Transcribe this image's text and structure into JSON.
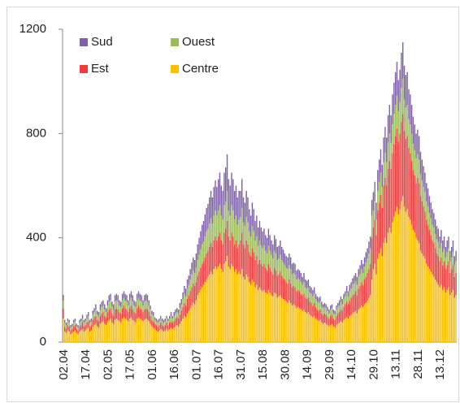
{
  "chart_data": {
    "type": "stacked_bar",
    "categories": [
      "02.04",
      null,
      null,
      null,
      null,
      null,
      null,
      null,
      null,
      null,
      null,
      null,
      null,
      null,
      null,
      "17.04",
      null,
      null,
      null,
      null,
      null,
      null,
      null,
      null,
      null,
      null,
      null,
      null,
      null,
      null,
      "02.05",
      null,
      null,
      null,
      null,
      null,
      null,
      null,
      null,
      null,
      null,
      null,
      null,
      null,
      null,
      "17.05",
      null,
      null,
      null,
      null,
      null,
      null,
      null,
      null,
      null,
      null,
      null,
      null,
      null,
      null,
      "01.06",
      null,
      null,
      null,
      null,
      null,
      null,
      null,
      null,
      null,
      null,
      null,
      null,
      null,
      null,
      "16.06",
      null,
      null,
      null,
      null,
      null,
      null,
      null,
      null,
      null,
      null,
      null,
      null,
      null,
      null,
      "01.07",
      null,
      null,
      null,
      null,
      null,
      null,
      null,
      null,
      null,
      null,
      null,
      null,
      null,
      null,
      "16.07",
      null,
      null,
      null,
      null,
      null,
      null,
      null,
      null,
      null,
      null,
      null,
      null,
      null,
      null,
      "31.07",
      null,
      null,
      null,
      null,
      null,
      null,
      null,
      null,
      null,
      null,
      null,
      null,
      null,
      null,
      "15.08",
      null,
      null,
      null,
      null,
      null,
      null,
      null,
      null,
      null,
      null,
      null,
      null,
      null,
      null,
      "30.08",
      null,
      null,
      null,
      null,
      null,
      null,
      null,
      null,
      null,
      null,
      null,
      null,
      null,
      null,
      "14.09",
      null,
      null,
      null,
      null,
      null,
      null,
      null,
      null,
      null,
      null,
      null,
      null,
      null,
      null,
      "29.09",
      null,
      null,
      null,
      null,
      null,
      null,
      null,
      null,
      null,
      null,
      null,
      null,
      null,
      null,
      "14.10",
      null,
      null,
      null,
      null,
      null,
      null,
      null,
      null,
      null,
      null,
      null,
      null,
      null,
      null,
      "29.10",
      null,
      null,
      null,
      null,
      null,
      null,
      null,
      null,
      null,
      null,
      null,
      null,
      null,
      null,
      "13.11",
      null,
      null,
      null,
      null,
      null,
      null,
      null,
      null,
      null,
      null,
      null,
      null,
      null,
      null,
      "28.11",
      null,
      null,
      null,
      null,
      null,
      null,
      null,
      null,
      null,
      null,
      null,
      null,
      null,
      null,
      "13.12",
      null,
      null,
      null,
      null,
      null,
      null,
      null,
      null,
      null,
      null,
      null
    ],
    "series": [
      {
        "name": "Sud",
        "color": "#7f60a8",
        "values": [
          20,
          10,
          10,
          10,
          10,
          10,
          10,
          10,
          10,
          10,
          10,
          10,
          10,
          15,
          10,
          10,
          15,
          15,
          10,
          10,
          15,
          15,
          20,
          15,
          15,
          20,
          20,
          20,
          20,
          15,
          20,
          25,
          25,
          20,
          20,
          25,
          25,
          25,
          20,
          20,
          25,
          25,
          25,
          25,
          20,
          25,
          25,
          25,
          20,
          20,
          25,
          25,
          25,
          25,
          20,
          25,
          25,
          25,
          20,
          15,
          15,
          15,
          10,
          10,
          10,
          10,
          10,
          10,
          10,
          10,
          10,
          10,
          10,
          15,
          10,
          15,
          15,
          15,
          15,
          20,
          20,
          25,
          30,
          30,
          35,
          35,
          40,
          45,
          50,
          50,
          55,
          60,
          65,
          70,
          75,
          80,
          85,
          90,
          95,
          100,
          105,
          100,
          110,
          115,
          110,
          120,
          125,
          115,
          110,
          125,
          130,
          140,
          120,
          115,
          125,
          120,
          110,
          115,
          105,
          110,
          100,
          110,
          95,
          90,
          100,
          95,
          85,
          80,
          90,
          85,
          75,
          80,
          70,
          75,
          70,
          65,
          65,
          60,
          60,
          65,
          60,
          55,
          55,
          60,
          55,
          50,
          50,
          55,
          50,
          50,
          45,
          45,
          45,
          45,
          45,
          40,
          40,
          40,
          35,
          35,
          35,
          35,
          30,
          35,
          30,
          30,
          30,
          25,
          25,
          25,
          25,
          20,
          20,
          20,
          20,
          20,
          15,
          15,
          15,
          15,
          15,
          15,
          15,
          15,
          15,
          15,
          15,
          20,
          20,
          20,
          20,
          20,
          25,
          20,
          25,
          25,
          25,
          30,
          30,
          30,
          30,
          35,
          35,
          35,
          35,
          40,
          40,
          45,
          45,
          60,
          70,
          75,
          65,
          80,
          85,
          90,
          85,
          95,
          100,
          95,
          105,
          110,
          105,
          115,
          120,
          125,
          130,
          120,
          125,
          135,
          140,
          130,
          125,
          125,
          115,
          115,
          110,
          105,
          100,
          95,
          95,
          90,
          85,
          80,
          80,
          75,
          70,
          70,
          65,
          60,
          60,
          55,
          55,
          50,
          50,
          45,
          50,
          45,
          45,
          40,
          45,
          45,
          40,
          40,
          45,
          35,
          40
        ]
      },
      {
        "name": "Ouest",
        "color": "#9bbb59",
        "values": [
          30,
          15,
          15,
          15,
          15,
          10,
          10,
          15,
          15,
          10,
          10,
          15,
          15,
          15,
          15,
          15,
          15,
          20,
          15,
          15,
          20,
          20,
          25,
          20,
          20,
          25,
          25,
          25,
          25,
          20,
          25,
          30,
          30,
          25,
          25,
          30,
          30,
          30,
          25,
          25,
          30,
          30,
          30,
          30,
          25,
          30,
          30,
          30,
          25,
          25,
          30,
          30,
          30,
          30,
          25,
          30,
          30,
          30,
          25,
          25,
          20,
          20,
          15,
          15,
          15,
          15,
          15,
          15,
          15,
          15,
          15,
          15,
          15,
          20,
          15,
          20,
          20,
          20,
          20,
          25,
          25,
          30,
          35,
          35,
          40,
          40,
          45,
          50,
          50,
          50,
          55,
          60,
          65,
          70,
          75,
          75,
          80,
          85,
          85,
          90,
          95,
          90,
          95,
          100,
          95,
          100,
          105,
          95,
          95,
          105,
          105,
          115,
          100,
          95,
          105,
          100,
          95,
          95,
          90,
          95,
          90,
          95,
          85,
          85,
          90,
          85,
          80,
          75,
          85,
          80,
          75,
          75,
          70,
          75,
          70,
          70,
          70,
          65,
          65,
          70,
          65,
          65,
          60,
          65,
          65,
          60,
          60,
          65,
          60,
          60,
          55,
          55,
          55,
          55,
          55,
          50,
          50,
          50,
          45,
          45,
          45,
          45,
          40,
          45,
          40,
          40,
          40,
          35,
          35,
          35,
          35,
          30,
          30,
          30,
          30,
          25,
          25,
          25,
          25,
          25,
          20,
          25,
          25,
          20,
          20,
          25,
          25,
          25,
          30,
          25,
          30,
          30,
          35,
          30,
          35,
          35,
          40,
          40,
          40,
          40,
          45,
          45,
          50,
          45,
          50,
          55,
          55,
          60,
          60,
          85,
          65,
          70,
          60,
          75,
          80,
          85,
          80,
          90,
          95,
          90,
          100,
          105,
          100,
          110,
          115,
          120,
          125,
          115,
          120,
          130,
          135,
          120,
          120,
          120,
          110,
          110,
          105,
          100,
          95,
          95,
          90,
          90,
          85,
          80,
          75,
          75,
          70,
          70,
          65,
          65,
          60,
          60,
          55,
          55,
          55,
          50,
          55,
          50,
          50,
          45,
          50,
          50,
          45,
          45,
          50,
          45,
          45
        ]
      },
      {
        "name": "Est",
        "color": "#f03c3c",
        "values": [
          40,
          20,
          15,
          20,
          20,
          15,
          15,
          20,
          20,
          15,
          15,
          20,
          20,
          25,
          20,
          20,
          25,
          25,
          20,
          20,
          25,
          30,
          30,
          25,
          25,
          30,
          35,
          35,
          30,
          30,
          35,
          40,
          40,
          35,
          30,
          40,
          40,
          40,
          35,
          35,
          40,
          45,
          40,
          40,
          35,
          40,
          45,
          40,
          35,
          35,
          40,
          45,
          40,
          40,
          35,
          40,
          40,
          40,
          35,
          30,
          25,
          25,
          20,
          20,
          20,
          20,
          25,
          20,
          20,
          20,
          25,
          20,
          25,
          25,
          25,
          25,
          30,
          30,
          30,
          35,
          40,
          45,
          50,
          45,
          55,
          60,
          65,
          70,
          75,
          70,
          70,
          75,
          80,
          85,
          90,
          90,
          95,
          100,
          100,
          105,
          110,
          105,
          110,
          115,
          110,
          115,
          120,
          110,
          105,
          120,
          125,
          135,
          115,
          110,
          120,
          115,
          105,
          110,
          100,
          105,
          130,
          140,
          125,
          120,
          130,
          125,
          115,
          110,
          120,
          115,
          105,
          110,
          100,
          105,
          100,
          95,
          100,
          95,
          90,
          100,
          95,
          90,
          85,
          95,
          90,
          85,
          85,
          90,
          85,
          80,
          80,
          75,
          75,
          80,
          75,
          70,
          70,
          70,
          65,
          65,
          65,
          60,
          60,
          60,
          55,
          55,
          55,
          50,
          50,
          45,
          50,
          45,
          40,
          40,
          40,
          35,
          35,
          35,
          35,
          30,
          30,
          35,
          35,
          30,
          30,
          35,
          40,
          40,
          45,
          45,
          50,
          55,
          60,
          55,
          60,
          65,
          70,
          70,
          75,
          70,
          80,
          85,
          90,
          85,
          95,
          100,
          105,
          110,
          120,
          160,
          160,
          170,
          150,
          185,
          195,
          205,
          185,
          220,
          230,
          220,
          245,
          255,
          245,
          265,
          280,
          290,
          300,
          280,
          290,
          305,
          315,
          290,
          280,
          280,
          265,
          255,
          245,
          230,
          220,
          210,
          240,
          230,
          210,
          200,
          190,
          180,
          170,
          160,
          150,
          140,
          130,
          130,
          120,
          110,
          110,
          100,
          105,
          95,
          100,
          90,
          95,
          100,
          85,
          90,
          95,
          80,
          85
        ]
      },
      {
        "name": "Centre",
        "color": "#ffc000",
        "values": [
          90,
          40,
          35,
          45,
          40,
          30,
          35,
          40,
          45,
          35,
          30,
          40,
          45,
          50,
          40,
          45,
          50,
          55,
          40,
          45,
          60,
          65,
          70,
          60,
          55,
          70,
          75,
          80,
          70,
          65,
          80,
          85,
          90,
          75,
          70,
          85,
          90,
          85,
          80,
          75,
          90,
          95,
          90,
          85,
          80,
          90,
          95,
          85,
          80,
          75,
          90,
          95,
          90,
          85,
          80,
          85,
          90,
          85,
          80,
          70,
          60,
          55,
          50,
          45,
          40,
          45,
          50,
          45,
          40,
          45,
          50,
          45,
          50,
          55,
          50,
          55,
          60,
          65,
          60,
          70,
          80,
          90,
          100,
          95,
          110,
          120,
          130,
          140,
          150,
          145,
          160,
          180,
          190,
          200,
          210,
          220,
          230,
          240,
          250,
          260,
          270,
          260,
          280,
          290,
          280,
          290,
          300,
          280,
          270,
          300,
          310,
          330,
          290,
          280,
          300,
          290,
          270,
          280,
          260,
          270,
          260,
          280,
          250,
          240,
          260,
          250,
          230,
          220,
          240,
          230,
          210,
          220,
          200,
          210,
          200,
          195,
          200,
          190,
          185,
          200,
          190,
          180,
          175,
          190,
          185,
          170,
          175,
          180,
          170,
          165,
          160,
          155,
          150,
          160,
          150,
          140,
          145,
          140,
          130,
          135,
          130,
          125,
          120,
          125,
          115,
          110,
          115,
          105,
          100,
          95,
          100,
          90,
          85,
          80,
          85,
          75,
          70,
          75,
          70,
          65,
          60,
          65,
          70,
          60,
          55,
          65,
          70,
          75,
          80,
          75,
          85,
          90,
          95,
          90,
          100,
          105,
          110,
          115,
          120,
          110,
          125,
          130,
          140,
          135,
          145,
          150,
          160,
          170,
          180,
          240,
          280,
          300,
          260,
          320,
          340,
          360,
          330,
          380,
          400,
          380,
          420,
          440,
          420,
          460,
          480,
          500,
          520,
          490,
          510,
          540,
          560,
          520,
          500,
          510,
          480,
          470,
          450,
          430,
          420,
          400,
          390,
          380,
          350,
          340,
          330,
          320,
          300,
          290,
          280,
          270,
          260,
          250,
          240,
          230,
          220,
          210,
          220,
          200,
          210,
          190,
          200,
          210,
          180,
          190,
          200,
          170,
          180
        ]
      }
    ],
    "ylim": [
      0,
      1200
    ],
    "yticks": [
      0,
      400,
      800,
      1200
    ],
    "legend": "upper left"
  }
}
